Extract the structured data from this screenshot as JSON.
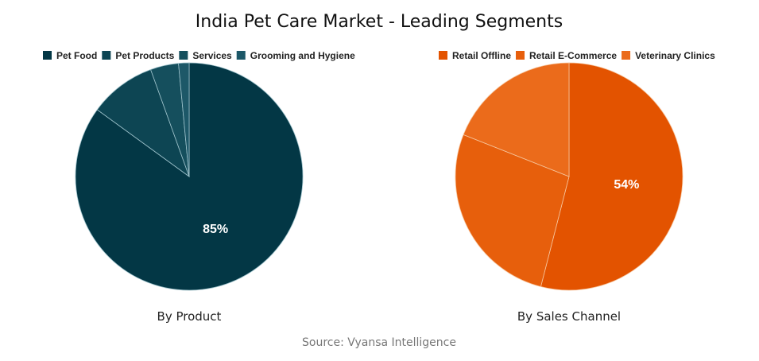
{
  "title": "India Pet Care Market - Leading Segments",
  "source": "Source: Vyansa Intelligence",
  "chart_data": [
    {
      "type": "pie",
      "subtitle": "By Product",
      "legend_position": "top",
      "categories": [
        "Pet Food",
        "Pet Products",
        "Services",
        "Grooming and Hygiene"
      ],
      "values": [
        85,
        9.5,
        4,
        1.5
      ],
      "data_labels": [
        "85%",
        "",
        "",
        ""
      ],
      "colors": [
        "#033745",
        "#0d4553",
        "#154f5d",
        "#1d5868"
      ]
    },
    {
      "type": "pie",
      "subtitle": "By Sales Channel",
      "legend_position": "top",
      "categories": [
        "Retail Offline",
        "Retail E-Commerce",
        "Veterinary Clinics"
      ],
      "values": [
        54,
        27,
        19
      ],
      "data_labels": [
        "54%",
        "",
        ""
      ],
      "colors": [
        "#e35300",
        "#e75f0c",
        "#eb6b1b"
      ]
    }
  ]
}
